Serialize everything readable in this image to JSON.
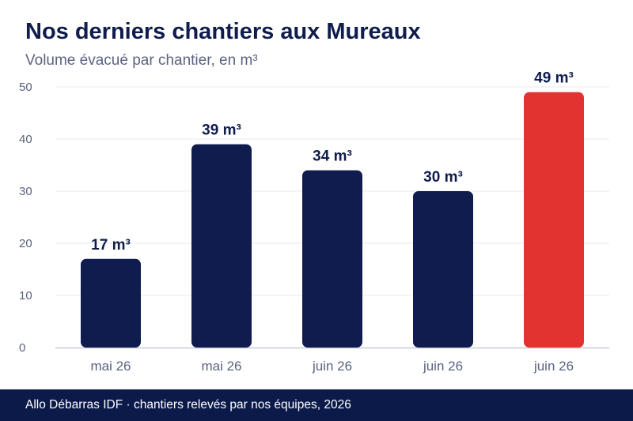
{
  "header": {
    "title": "Nos derniers chantiers aux Mureaux",
    "subtitle": "Volume évacué par chantier, en m³"
  },
  "footer": {
    "text": "Allo Débarras IDF · chantiers relevés par nos équipes, 2026"
  },
  "colors": {
    "bar": "#0f1c4d",
    "highlight": "#e33330",
    "grid": "#e8eaf0",
    "axis": "#c8ccd8",
    "tick_text": "#5a6380",
    "label_text": "#0f1c4d",
    "footer_bg": "#0c1a4a"
  },
  "chart_data": {
    "type": "bar",
    "categories": [
      "mai 26",
      "mai 26",
      "juin 26",
      "juin 26",
      "juin 26"
    ],
    "values": [
      17,
      39,
      34,
      30,
      49
    ],
    "value_labels": [
      "17 m³",
      "39 m³",
      "34 m³",
      "30 m³",
      "49 m³"
    ],
    "highlight_index": 4,
    "yticks": [
      0,
      10,
      20,
      30,
      40,
      50
    ],
    "ylim": [
      0,
      50
    ],
    "grid": true,
    "legend": "none"
  }
}
